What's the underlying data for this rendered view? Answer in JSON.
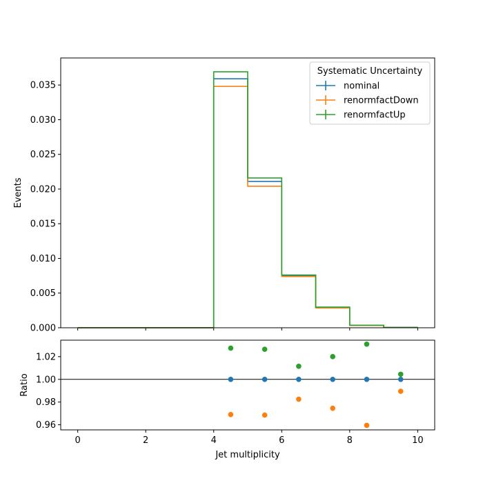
{
  "chart_data": [
    {
      "type": "step",
      "panel": "main",
      "xlabel": "",
      "ylabel": "Events",
      "xlim": [
        -0.5,
        10.5
      ],
      "ylim": [
        0.0,
        0.0389
      ],
      "bin_edges": [
        0,
        1,
        2,
        3,
        4,
        5,
        6,
        7,
        8,
        9,
        10
      ],
      "x_ticks": [
        0,
        2,
        4,
        6,
        8,
        10
      ],
      "x_tick_labels": [
        "",
        "",
        "",
        "",
        "",
        ""
      ],
      "y_ticks": [
        0.0,
        0.005,
        0.01,
        0.015,
        0.02,
        0.025,
        0.03,
        0.035
      ],
      "y_tick_labels": [
        "0.000",
        "0.005",
        "0.010",
        "0.015",
        "0.020",
        "0.025",
        "0.030",
        "0.035"
      ],
      "legend": {
        "title": "Systematic Uncertainty",
        "position": "top-right"
      },
      "series": [
        {
          "name": "nominal",
          "color": "#1f77b4",
          "values": [
            0,
            0,
            0,
            0,
            0.0359,
            0.0211,
            0.00752,
            0.00292,
            0.00035,
            4e-05
          ]
        },
        {
          "name": "renormfactDown",
          "color": "#ff7f0e",
          "values": [
            0,
            0,
            0,
            0,
            0.0348,
            0.0204,
            0.00739,
            0.00285,
            0.00034,
            4e-05
          ]
        },
        {
          "name": "renormfactUp",
          "color": "#2ca02c",
          "values": [
            0,
            0,
            0,
            0,
            0.0369,
            0.0216,
            0.00761,
            0.00298,
            0.00036,
            4e-05
          ]
        }
      ]
    },
    {
      "type": "scatter",
      "panel": "ratio",
      "xlabel": "Jet multiplicity",
      "ylabel": "Ratio",
      "xlim": [
        -0.5,
        10.5
      ],
      "ylim": [
        0.9555,
        1.0345
      ],
      "x_ticks": [
        0,
        2,
        4,
        6,
        8,
        10
      ],
      "x_tick_labels": [
        "0",
        "2",
        "4",
        "6",
        "8",
        "10"
      ],
      "y_ticks": [
        0.96,
        0.98,
        1.0,
        1.02
      ],
      "y_tick_labels": [
        "0.96",
        "0.98",
        "1.00",
        "1.02"
      ],
      "reference_line": 1.0,
      "series": [
        {
          "name": "nominal",
          "color": "#1f77b4",
          "x": [
            4.5,
            5.5,
            6.5,
            7.5,
            8.5,
            9.5
          ],
          "y": [
            1.0,
            1.0,
            1.0,
            1.0,
            1.0,
            1.0
          ]
        },
        {
          "name": "renormfactDown",
          "color": "#ff7f0e",
          "x": [
            4.5,
            5.5,
            6.5,
            7.5,
            8.5,
            9.5
          ],
          "y": [
            0.969,
            0.9685,
            0.9825,
            0.9745,
            0.9595,
            0.9895
          ]
        },
        {
          "name": "renormfactUp",
          "color": "#2ca02c",
          "x": [
            4.5,
            5.5,
            6.5,
            7.5,
            8.5,
            9.5
          ],
          "y": [
            1.0275,
            1.0265,
            1.0115,
            1.02,
            1.031,
            1.0045
          ]
        }
      ]
    }
  ]
}
